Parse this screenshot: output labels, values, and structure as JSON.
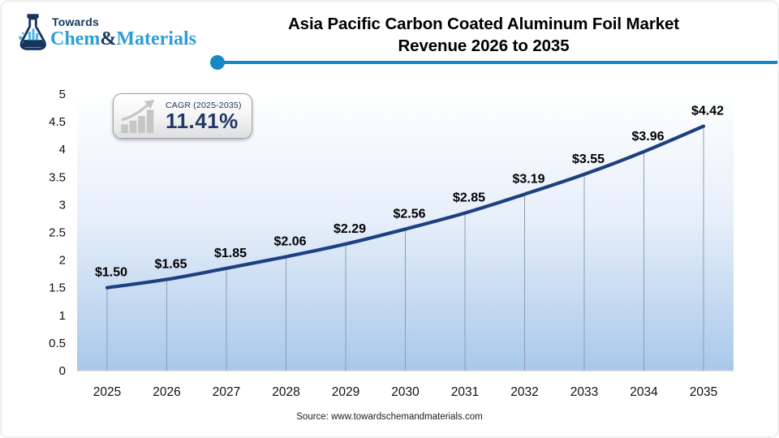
{
  "header": {
    "logo": {
      "towards": "Towards",
      "chem": "Chem",
      "amp": "&",
      "materials": "Materials",
      "navy": "#16355e",
      "light_blue": "#2d9fd8"
    },
    "title_line1": "Asia Pacific Carbon Coated Aluminum Foil Market",
    "title_line2": "Revenue 2026 to 2035",
    "underline_color": "#1787c5"
  },
  "cagr_badge": {
    "label": "CAGR (2025-2035)",
    "value": "11.41%",
    "icon": "bar-chart-growth-arrow-icon",
    "text_color": "#1f3864"
  },
  "chart_data": {
    "type": "line",
    "title": "Asia Pacific Carbon Coated Aluminum Foil Market Revenue 2026 to 2035",
    "categories": [
      "2025",
      "2026",
      "2027",
      "2028",
      "2029",
      "2030",
      "2031",
      "2032",
      "2033",
      "2034",
      "2035"
    ],
    "values": [
      1.5,
      1.65,
      1.85,
      2.06,
      2.29,
      2.56,
      2.85,
      3.19,
      3.55,
      3.96,
      4.42
    ],
    "point_labels": [
      "$1.50",
      "$1.65",
      "$1.85",
      "$2.06",
      "$2.29",
      "$2.56",
      "$2.85",
      "$3.19",
      "$3.55",
      "$3.96",
      "$4.42"
    ],
    "xlabel": "",
    "ylabel": "",
    "ylim": [
      0,
      5
    ],
    "yticks": [
      "0",
      "0.5",
      "1",
      "1.5",
      "2",
      "2.5",
      "3",
      "3.5",
      "4",
      "4.5",
      "5"
    ],
    "grid": "vertical-drop-lines-only",
    "legend": "none",
    "line_color": "#1e4080",
    "drop_line_color": "#8d9cb4",
    "plot_bg_top": "#feffff",
    "plot_bg_mid": "#e7effa",
    "plot_bg_bottom": "#a8c8ea"
  },
  "footer": {
    "source": "Source: www.towardschemandmaterials.com"
  }
}
